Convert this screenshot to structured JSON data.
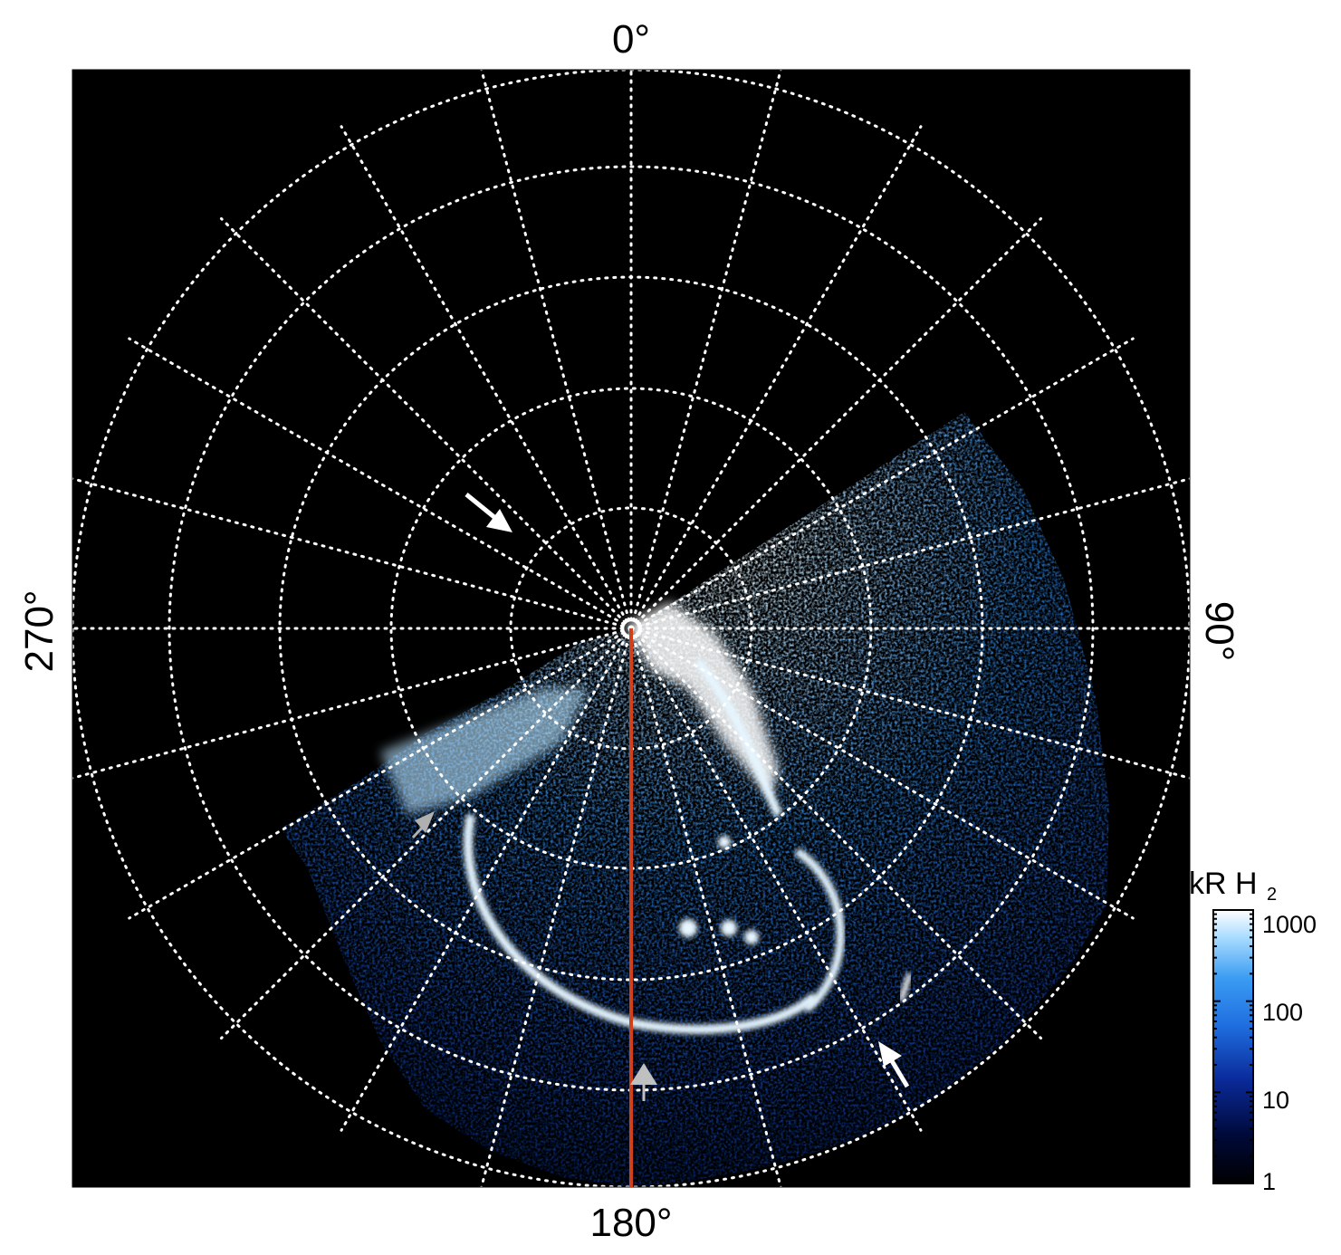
{
  "image": {
    "description_colors": {
      "background": "#000000",
      "grid": "#ffffff",
      "aurora_dark": "#0b2a8c",
      "aurora_mid": "#1f7fe6",
      "aurora_light": "#9fd8ff",
      "aurora_bright": "#ffffff",
      "meridian_line": "#d0401a",
      "arrow_white": "#ffffff",
      "arrow_gray": "#b0b0b0"
    }
  },
  "axes": {
    "top": "0°",
    "right": "90°",
    "bottom": "180°",
    "left": "270°"
  },
  "colorbar": {
    "title": "kR H",
    "title_subscript": "2",
    "ticks": [
      "1000",
      "100",
      "10",
      "1"
    ],
    "scale": "log",
    "range": [
      1,
      1000
    ]
  },
  "markers": [
    {
      "name": "white-arrow-upper-left",
      "color": "white"
    },
    {
      "name": "white-arrow-lower-right",
      "color": "white"
    },
    {
      "name": "gray-arrow-left",
      "color": "gray"
    },
    {
      "name": "gray-arrow-bottom",
      "color": "gray"
    }
  ]
}
